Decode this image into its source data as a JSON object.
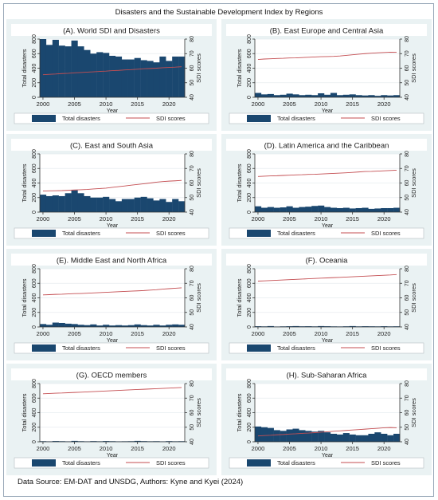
{
  "title": "Disasters and the Sustainable Development Index by Regions",
  "footer": "Data Source: EM-DAT and UNSDG, Authors: Kyne and Kyei (2024)",
  "colors": {
    "bar": "#1a476f",
    "line": "#c44e52",
    "band": "#e9eef4",
    "panel_bg": "#eaf2f3",
    "plot_bg": "#ffffff"
  },
  "chart_data": [
    {
      "type": "bar",
      "title": "(A). World SDI and Disasters",
      "xlabel": "Year",
      "ylabel": "Total disasters",
      "y2label": "SDI scores",
      "x": [
        2000,
        2001,
        2002,
        2003,
        2004,
        2005,
        2006,
        2007,
        2008,
        2009,
        2010,
        2011,
        2012,
        2013,
        2014,
        2015,
        2016,
        2017,
        2018,
        2019,
        2020,
        2021,
        2022
      ],
      "xticks": [
        2000,
        2005,
        2010,
        2015,
        2020
      ],
      "ylim": [
        0,
        800
      ],
      "yticks": [
        0,
        200,
        400,
        600,
        800
      ],
      "y2lim": [
        40,
        80
      ],
      "y2ticks": [
        40,
        50,
        60,
        70,
        80
      ],
      "grid": true,
      "legend_position": "bottom",
      "series": [
        {
          "name": "Total disasters",
          "type": "bar",
          "axis": "left",
          "values": [
            800,
            720,
            790,
            710,
            700,
            780,
            700,
            650,
            600,
            620,
            610,
            570,
            560,
            520,
            520,
            540,
            510,
            500,
            480,
            560,
            500,
            560,
            560
          ]
        },
        {
          "name": "SDI scores",
          "type": "line",
          "axis": "right",
          "values": [
            55.5,
            55.8,
            56,
            56.3,
            56.5,
            56.8,
            57,
            57.3,
            57.5,
            57.8,
            58,
            58.3,
            58.5,
            58.8,
            59,
            59.3,
            59.6,
            59.8,
            60,
            60.3,
            60.5,
            60.7,
            61
          ]
        }
      ]
    },
    {
      "type": "bar",
      "title": "(B). East Europe and Central Asia",
      "xlabel": "Year",
      "ylabel": "Total disasters",
      "y2label": "SDI scores",
      "x": [
        2000,
        2001,
        2002,
        2003,
        2004,
        2005,
        2006,
        2007,
        2008,
        2009,
        2010,
        2011,
        2012,
        2013,
        2014,
        2015,
        2016,
        2017,
        2018,
        2019,
        2020,
        2021,
        2022
      ],
      "xticks": [
        2000,
        2005,
        2010,
        2015,
        2020
      ],
      "ylim": [
        0,
        800
      ],
      "yticks": [
        0,
        200,
        400,
        600,
        800
      ],
      "y2lim": [
        40,
        80
      ],
      "y2ticks": [
        40,
        50,
        60,
        70,
        80
      ],
      "grid": true,
      "legend_position": "bottom",
      "series": [
        {
          "name": "Total disasters",
          "type": "bar",
          "axis": "left",
          "values": [
            60,
            40,
            45,
            30,
            35,
            50,
            40,
            30,
            35,
            30,
            55,
            35,
            60,
            30,
            35,
            40,
            30,
            25,
            30,
            20,
            30,
            25,
            30
          ]
        },
        {
          "name": "SDI scores",
          "type": "line",
          "axis": "right",
          "values": [
            66,
            66.3,
            66.5,
            66.7,
            66.8,
            67,
            67.1,
            67.3,
            67.5,
            67.7,
            67.9,
            68,
            68.1,
            68.4,
            68.8,
            69.2,
            69.6,
            70,
            70.3,
            70.6,
            70.8,
            71,
            70.9
          ]
        }
      ]
    },
    {
      "type": "bar",
      "title": "(C). East and South Asia",
      "xlabel": "Year",
      "ylabel": "Total disasters",
      "y2label": "SDI scores",
      "x": [
        2000,
        2001,
        2002,
        2003,
        2004,
        2005,
        2006,
        2007,
        2008,
        2009,
        2010,
        2011,
        2012,
        2013,
        2014,
        2015,
        2016,
        2017,
        2018,
        2019,
        2020,
        2021,
        2022
      ],
      "xticks": [
        2000,
        2005,
        2010,
        2015,
        2020
      ],
      "ylim": [
        0,
        800
      ],
      "yticks": [
        0,
        200,
        400,
        600,
        800
      ],
      "y2lim": [
        40,
        80
      ],
      "y2ticks": [
        40,
        50,
        60,
        70,
        80
      ],
      "grid": true,
      "legend_position": "bottom",
      "series": [
        {
          "name": "Total disasters",
          "type": "bar",
          "axis": "left",
          "values": [
            240,
            220,
            230,
            220,
            260,
            300,
            260,
            220,
            200,
            200,
            210,
            180,
            150,
            180,
            180,
            200,
            210,
            190,
            160,
            180,
            140,
            180,
            150
          ]
        },
        {
          "name": "SDI scores",
          "type": "line",
          "axis": "right",
          "values": [
            54.5,
            54.6,
            54.7,
            54.8,
            55,
            55.2,
            55.4,
            55.6,
            55.9,
            56.2,
            56.5,
            57,
            57.5,
            58,
            58.5,
            59,
            59.5,
            60,
            60.6,
            61,
            61.3,
            61.5,
            61.8
          ]
        }
      ]
    },
    {
      "type": "bar",
      "title": "(D). Latin America and the Caribbean",
      "xlabel": "Year",
      "ylabel": "Total disasters",
      "y2label": "SDI scores",
      "x": [
        2000,
        2001,
        2002,
        2003,
        2004,
        2005,
        2006,
        2007,
        2008,
        2009,
        2010,
        2011,
        2012,
        2013,
        2014,
        2015,
        2016,
        2017,
        2018,
        2019,
        2020,
        2021,
        2022
      ],
      "xticks": [
        2000,
        2005,
        2010,
        2015,
        2020
      ],
      "ylim": [
        0,
        800
      ],
      "yticks": [
        0,
        200,
        400,
        600,
        800
      ],
      "y2lim": [
        40,
        80
      ],
      "y2ticks": [
        40,
        50,
        60,
        70,
        80
      ],
      "grid": true,
      "legend_position": "bottom",
      "series": [
        {
          "name": "Total disasters",
          "type": "bar",
          "axis": "left",
          "values": [
            80,
            60,
            70,
            60,
            65,
            80,
            60,
            70,
            75,
            85,
            90,
            70,
            60,
            55,
            60,
            50,
            55,
            60,
            45,
            50,
            55,
            55,
            60
          ]
        },
        {
          "name": "SDI scores",
          "type": "line",
          "axis": "right",
          "values": [
            64.5,
            64.7,
            64.9,
            65,
            65.2,
            65.4,
            65.6,
            65.7,
            65.9,
            66,
            66.2,
            66.4,
            66.6,
            66.8,
            67,
            67.3,
            67.6,
            67.9,
            68,
            68.2,
            68.4,
            68.6,
            68.8
          ]
        }
      ]
    },
    {
      "type": "bar",
      "title": "(E). Middle East and North Africa",
      "xlabel": "Year",
      "ylabel": "Total disasters",
      "y2label": "SDI scores",
      "x": [
        2000,
        2001,
        2002,
        2003,
        2004,
        2005,
        2006,
        2007,
        2008,
        2009,
        2010,
        2011,
        2012,
        2013,
        2014,
        2015,
        2016,
        2017,
        2018,
        2019,
        2020,
        2021,
        2022
      ],
      "xticks": [
        2000,
        2005,
        2010,
        2015,
        2020
      ],
      "ylim": [
        0,
        800
      ],
      "yticks": [
        0,
        200,
        400,
        600,
        800
      ],
      "y2lim": [
        40,
        80
      ],
      "y2ticks": [
        40,
        50,
        60,
        70,
        80
      ],
      "grid": true,
      "legend_position": "bottom",
      "series": [
        {
          "name": "Total disasters",
          "type": "bar",
          "axis": "left",
          "values": [
            40,
            30,
            60,
            55,
            45,
            40,
            30,
            25,
            35,
            20,
            30,
            20,
            25,
            20,
            25,
            35,
            25,
            20,
            30,
            20,
            30,
            35,
            30
          ]
        },
        {
          "name": "SDI scores",
          "type": "line",
          "axis": "right",
          "values": [
            62,
            62.2,
            62.4,
            62.5,
            62.7,
            62.9,
            63,
            63.2,
            63.4,
            63.6,
            63.8,
            64,
            64.2,
            64.4,
            64.6,
            64.8,
            65,
            65.3,
            65.6,
            66,
            66.3,
            66.6,
            66.9
          ]
        }
      ]
    },
    {
      "type": "bar",
      "title": "(F). Oceania",
      "xlabel": "Year",
      "ylabel": "Total disasters",
      "y2label": "SDI scores",
      "x": [
        2000,
        2001,
        2002,
        2003,
        2004,
        2005,
        2006,
        2007,
        2008,
        2009,
        2010,
        2011,
        2012,
        2013,
        2014,
        2015,
        2016,
        2017,
        2018,
        2019,
        2020,
        2021,
        2022
      ],
      "xticks": [
        2000,
        2005,
        2010,
        2015,
        2020
      ],
      "ylim": [
        0,
        800
      ],
      "yticks": [
        0,
        200,
        400,
        600,
        800
      ],
      "y2lim": [
        40,
        80
      ],
      "y2ticks": [
        40,
        50,
        60,
        70,
        80
      ],
      "grid": true,
      "legend_position": "bottom",
      "series": [
        {
          "name": "Total disasters",
          "type": "bar",
          "axis": "left",
          "values": [
            10,
            8,
            12,
            6,
            8,
            10,
            12,
            9,
            10,
            8,
            12,
            10,
            8,
            7,
            9,
            12,
            8,
            10,
            9,
            8,
            10,
            8,
            9
          ]
        },
        {
          "name": "SDI scores",
          "type": "line",
          "axis": "right",
          "values": [
            71.5,
            71.7,
            71.9,
            72.1,
            72.3,
            72.5,
            72.7,
            72.9,
            73.1,
            73.3,
            73.5,
            73.7,
            73.9,
            74.1,
            74.3,
            74.5,
            74.7,
            74.9,
            75.1,
            75.3,
            75.5,
            75.7,
            76
          ]
        }
      ]
    },
    {
      "type": "bar",
      "title": "(G). OECD members",
      "xlabel": "Year",
      "ylabel": "Total disasters",
      "y2label": "SDI scores",
      "x": [
        2000,
        2001,
        2002,
        2003,
        2004,
        2005,
        2006,
        2007,
        2008,
        2009,
        2010,
        2011,
        2012,
        2013,
        2014,
        2015,
        2016,
        2017,
        2018,
        2019,
        2020,
        2021,
        2022
      ],
      "xticks": [
        2000,
        2005,
        2010,
        2015,
        2020
      ],
      "ylim": [
        0,
        800
      ],
      "yticks": [
        0,
        200,
        400,
        600,
        800
      ],
      "y2lim": [
        40,
        80
      ],
      "y2ticks": [
        40,
        50,
        60,
        70,
        80
      ],
      "grid": true,
      "legend_position": "bottom",
      "series": [
        {
          "name": "Total disasters",
          "type": "bar",
          "axis": "left",
          "values": [
            8,
            6,
            10,
            8,
            6,
            12,
            8,
            6,
            9,
            7,
            10,
            8,
            6,
            7,
            8,
            12,
            9,
            7,
            8,
            6,
            9,
            7,
            8
          ]
        },
        {
          "name": "SDI scores",
          "type": "line",
          "axis": "right",
          "values": [
            73,
            73.2,
            73.4,
            73.5,
            73.7,
            73.9,
            74.1,
            74.3,
            74.5,
            74.7,
            74.9,
            75.1,
            75.3,
            75.5,
            75.7,
            75.9,
            76.1,
            76.3,
            76.5,
            76.7,
            76.9,
            77.1,
            77.3
          ]
        }
      ]
    },
    {
      "type": "bar",
      "title": "(H). Sub-Saharan Africa",
      "xlabel": "Year",
      "ylabel": "Total disasters",
      "y2label": "SDI scores",
      "x": [
        2000,
        2001,
        2002,
        2003,
        2004,
        2005,
        2006,
        2007,
        2008,
        2009,
        2010,
        2011,
        2012,
        2013,
        2014,
        2015,
        2016,
        2017,
        2018,
        2019,
        2020,
        2021,
        2022
      ],
      "xticks": [
        2000,
        2005,
        2010,
        2015,
        2020
      ],
      "ylim": [
        0,
        800
      ],
      "yticks": [
        0,
        200,
        400,
        600,
        800
      ],
      "y2lim": [
        40,
        80
      ],
      "y2ticks": [
        40,
        50,
        60,
        70,
        80
      ],
      "grid": true,
      "legend_position": "bottom",
      "series": [
        {
          "name": "Total disasters",
          "type": "bar",
          "axis": "left",
          "values": [
            210,
            200,
            190,
            160,
            150,
            170,
            180,
            160,
            150,
            140,
            150,
            130,
            110,
            100,
            120,
            100,
            90,
            90,
            110,
            130,
            110,
            90,
            110
          ]
        },
        {
          "name": "SDI scores",
          "type": "line",
          "axis": "right",
          "values": [
            44,
            44.3,
            44.5,
            44.8,
            45,
            45.3,
            45.5,
            45.8,
            46,
            46.3,
            46.6,
            46.9,
            47.2,
            47.5,
            47.8,
            48.1,
            48.4,
            48.7,
            49,
            49.3,
            49.6,
            49.8,
            49.6
          ]
        }
      ]
    }
  ]
}
